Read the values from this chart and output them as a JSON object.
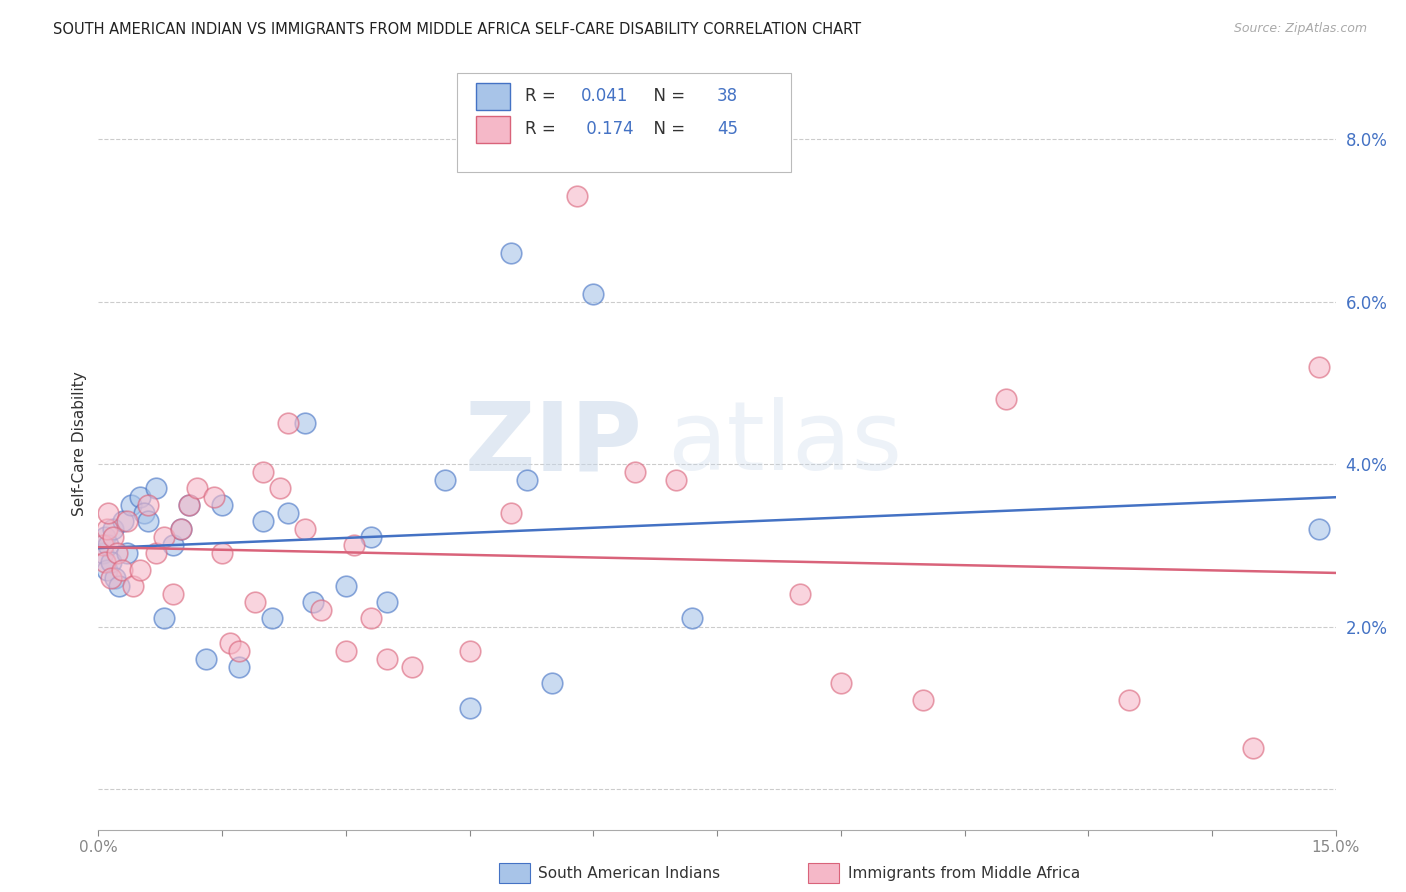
{
  "title": "SOUTH AMERICAN INDIAN VS IMMIGRANTS FROM MIDDLE AFRICA SELF-CARE DISABILITY CORRELATION CHART",
  "source": "Source: ZipAtlas.com",
  "ylabel": "Self-Care Disability",
  "xlim": [
    0.0,
    15.0
  ],
  "ylim": [
    -0.5,
    9.0
  ],
  "yticks": [
    0.0,
    2.0,
    4.0,
    6.0,
    8.0
  ],
  "blue_r": "0.041",
  "blue_n": "38",
  "pink_r": "0.174",
  "pink_n": "45",
  "blue_fill": "#a8c4e8",
  "blue_edge": "#4472c4",
  "pink_fill": "#f5b8c8",
  "pink_edge": "#d9637a",
  "blue_line": "#4472c4",
  "pink_line": "#d9637a",
  "blue_x": [
    0.05,
    0.08,
    0.1,
    0.12,
    0.15,
    0.18,
    0.2,
    0.25,
    0.3,
    0.35,
    0.4,
    0.5,
    0.55,
    0.6,
    0.7,
    0.8,
    0.9,
    1.0,
    1.1,
    1.3,
    1.5,
    1.7,
    2.0,
    2.1,
    2.3,
    2.5,
    2.6,
    3.0,
    3.3,
    3.5,
    4.2,
    4.5,
    5.0,
    5.2,
    5.5,
    6.0,
    7.2,
    14.8
  ],
  "blue_y": [
    2.9,
    3.1,
    2.7,
    3.0,
    2.8,
    3.2,
    2.6,
    2.5,
    3.3,
    2.9,
    3.5,
    3.6,
    3.4,
    3.3,
    3.7,
    2.1,
    3.0,
    3.2,
    3.5,
    1.6,
    3.5,
    1.5,
    3.3,
    2.1,
    3.4,
    4.5,
    2.3,
    2.5,
    3.1,
    2.3,
    3.8,
    1.0,
    6.6,
    3.8,
    1.3,
    6.1,
    2.1,
    3.2
  ],
  "pink_x": [
    0.05,
    0.08,
    0.1,
    0.12,
    0.15,
    0.18,
    0.22,
    0.28,
    0.35,
    0.42,
    0.5,
    0.6,
    0.7,
    0.8,
    0.9,
    1.0,
    1.1,
    1.2,
    1.4,
    1.5,
    1.6,
    1.7,
    1.9,
    2.0,
    2.2,
    2.3,
    2.5,
    2.7,
    3.0,
    3.1,
    3.3,
    3.5,
    3.8,
    4.5,
    5.0,
    5.8,
    6.5,
    7.0,
    8.5,
    9.0,
    10.0,
    11.0,
    12.5,
    14.0,
    14.8
  ],
  "pink_y": [
    3.0,
    2.8,
    3.2,
    3.4,
    2.6,
    3.1,
    2.9,
    2.7,
    3.3,
    2.5,
    2.7,
    3.5,
    2.9,
    3.1,
    2.4,
    3.2,
    3.5,
    3.7,
    3.6,
    2.9,
    1.8,
    1.7,
    2.3,
    3.9,
    3.7,
    4.5,
    3.2,
    2.2,
    1.7,
    3.0,
    2.1,
    1.6,
    1.5,
    1.7,
    3.4,
    7.3,
    3.9,
    3.8,
    2.4,
    1.3,
    1.1,
    4.8,
    1.1,
    0.5,
    5.2
  ]
}
